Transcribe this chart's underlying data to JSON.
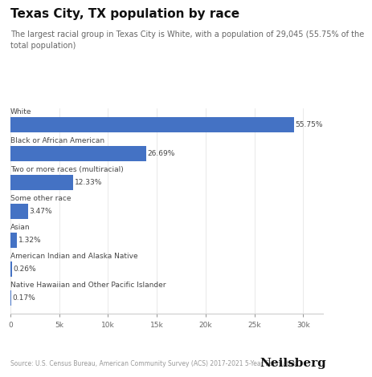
{
  "title": "Texas City, TX population by race",
  "subtitle": "The largest racial group in Texas City is White, with a population of 29,045 (55.75% of the\ntotal population)",
  "categories": [
    "White",
    "Black or African American",
    "Two or more races (multiracial)",
    "Some other race",
    "Asian",
    "American Indian and Alaska Native",
    "Native Hawaiian and Other Pacific Islander"
  ],
  "values": [
    29045,
    13908,
    6422,
    1808,
    688,
    135,
    89
  ],
  "percentages": [
    "55.75%",
    "26.69%",
    "12.33%",
    "3.47%",
    "1.32%",
    "0.26%",
    "0.17%"
  ],
  "bar_color": "#4472C4",
  "background_color": "#ffffff",
  "source_text": "Source: U.S. Census Bureau, American Community Survey (ACS) 2017-2021 5-Year Estimates",
  "brand_text": "Neilsberg",
  "xlim": [
    0,
    32000
  ],
  "xticks": [
    0,
    5000,
    10000,
    15000,
    20000,
    25000,
    30000
  ],
  "xtick_labels": [
    "0",
    "5k",
    "10k",
    "15k",
    "20k",
    "25k",
    "30k"
  ],
  "title_fontsize": 11,
  "subtitle_fontsize": 7,
  "label_fontsize": 6.5,
  "pct_fontsize": 6.5,
  "tick_fontsize": 6.5,
  "source_fontsize": 5.5,
  "brand_fontsize": 11
}
